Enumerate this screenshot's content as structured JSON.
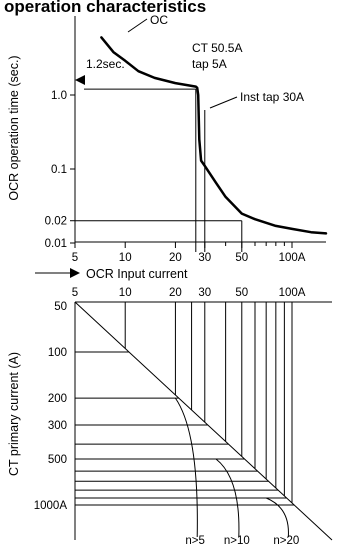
{
  "title": "operation characteristics",
  "top_chart": {
    "ylabel": "OCR operation time (sec.)",
    "xlabel": "OCR Input current",
    "ytick_labels": [
      "1.0",
      "0.1",
      "0.02",
      "0.01"
    ],
    "xtick_labels": [
      "5",
      "10",
      "20",
      "30",
      "50",
      "100A"
    ],
    "annotations": {
      "oc": "OC",
      "ct_line1": "CT 50.5A",
      "ct_line2": "tap 5A",
      "inst": "Inst tap 30A",
      "time": "1.2sec."
    }
  },
  "bottom_chart": {
    "ylabel": "CT primary current (A)",
    "xtick_labels": [
      "5",
      "10",
      "20",
      "30",
      "50",
      "100A"
    ],
    "ytick_labels": [
      "50",
      "100",
      "200",
      "300",
      "500",
      "1000A"
    ],
    "n_labels": [
      "n>5",
      "n>10",
      "n>20"
    ]
  },
  "chart_data": [
    {
      "type": "line",
      "title": "operation characteristics",
      "xlabel": "OCR Input current",
      "ylabel": "OCR operation time (sec.)",
      "x_scale": "log",
      "y_scale": "log",
      "xlim": [
        5,
        170
      ],
      "ylim": [
        0.01,
        6
      ],
      "series": [
        {
          "name": "OC",
          "x": [
            7.2,
            8.5,
            10,
            12,
            15,
            20,
            24,
            26.5,
            27,
            27.4,
            27.8,
            28.5,
            30,
            35,
            40,
            50,
            60,
            80,
            100,
            130,
            160
          ],
          "y": [
            6.0,
            3.8,
            2.9,
            2.1,
            1.7,
            1.45,
            1.35,
            1.3,
            1.25,
            1.0,
            0.25,
            0.13,
            0.11,
            0.065,
            0.042,
            0.025,
            0.021,
            0.017,
            0.0155,
            0.014,
            0.0135
          ]
        }
      ],
      "markers": {
        "ct_current_x": 26.5,
        "operation_time_y": 1.2,
        "inst_x": 30,
        "current_50_x": 50,
        "time_002_y": 0.02
      }
    },
    {
      "type": "line",
      "xlabel": "OCR Input current",
      "ylabel": "CT primary current (A)",
      "x_scale": "log",
      "y_scale": "log",
      "xlim": [
        5,
        170
      ],
      "ylim": [
        50,
        2000
      ],
      "vertical_lines_x": [
        10,
        20,
        25,
        30,
        40,
        50,
        60,
        70,
        80,
        90,
        100
      ],
      "horizontal_lines_y": [
        100,
        200,
        300,
        400,
        500,
        600,
        700,
        800,
        900,
        1000
      ],
      "saturation_curves": [
        {
          "name": "n>5",
          "start": [
            20,
            200
          ],
          "end_x": 27
        },
        {
          "name": "n>10",
          "start": [
            35,
            500
          ],
          "end_x": 48
        },
        {
          "name": "n>20",
          "start": [
            70,
            900
          ],
          "end_x": 95
        }
      ]
    }
  ]
}
